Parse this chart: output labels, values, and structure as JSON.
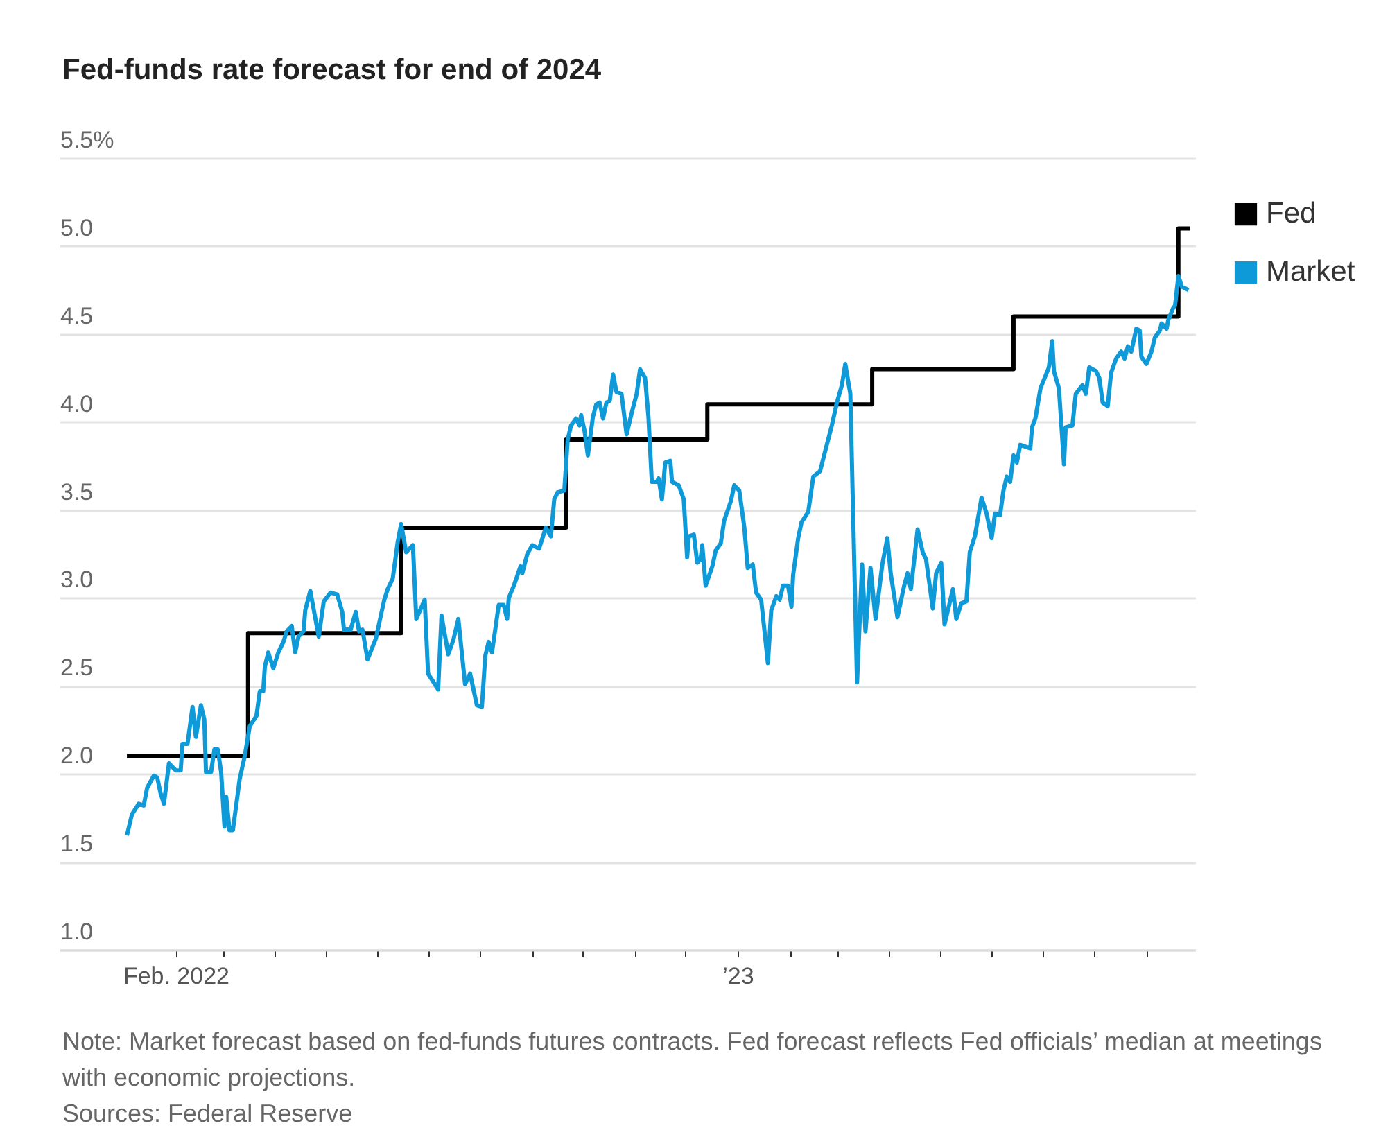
{
  "chart_data": {
    "type": "line",
    "title": "Fed-funds rate forecast for end of 2024",
    "xlim": [
      "2021-11-24",
      "2023-09-30"
    ],
    "xticks": [
      {
        "value": "2022-02-01",
        "label": "Feb. 2022"
      },
      {
        "value": "2022-03-01",
        "label": null
      },
      {
        "value": "2022-04-01",
        "label": null
      },
      {
        "value": "2022-05-01",
        "label": null
      },
      {
        "value": "2022-06-01",
        "label": null
      },
      {
        "value": "2022-07-01",
        "label": null
      },
      {
        "value": "2022-08-01",
        "label": null
      },
      {
        "value": "2022-09-01",
        "label": null
      },
      {
        "value": "2022-10-01",
        "label": null
      },
      {
        "value": "2022-11-01",
        "label": null
      },
      {
        "value": "2022-12-01",
        "label": null
      },
      {
        "value": "2023-01-01",
        "label": "’23"
      },
      {
        "value": "2023-02-01",
        "label": null
      },
      {
        "value": "2023-03-01",
        "label": null
      },
      {
        "value": "2023-04-01",
        "label": null
      },
      {
        "value": "2023-05-01",
        "label": null
      },
      {
        "value": "2023-06-01",
        "label": null
      },
      {
        "value": "2023-07-01",
        "label": null
      },
      {
        "value": "2023-08-01",
        "label": null
      },
      {
        "value": "2023-09-01",
        "label": null
      }
    ],
    "ylim": [
      1,
      5.5
    ],
    "yticks": [
      {
        "value": 1,
        "label": "1.0"
      },
      {
        "value": 1.5,
        "label": "1.5"
      },
      {
        "value": 2,
        "label": "2.0"
      },
      {
        "value": 2.5,
        "label": "2.5"
      },
      {
        "value": 3,
        "label": "3.0"
      },
      {
        "value": 3.5,
        "label": "3.5"
      },
      {
        "value": 4,
        "label": "4.0"
      },
      {
        "value": 4.5,
        "label": "4.5"
      },
      {
        "value": 5,
        "label": "5.0"
      },
      {
        "value": 5.5,
        "label": "5.5%"
      }
    ],
    "grid": "y",
    "legend": "top right",
    "series": [
      {
        "name": "Fed",
        "type": "step",
        "color": "#000000",
        "x": [
          "2022-01-03",
          "2022-03-16",
          "2022-06-15",
          "2022-09-21",
          "2022-12-14",
          "2023-03-22",
          "2023-06-14",
          "2023-09-20",
          "2023-09-27"
        ],
        "values": [
          2.1,
          2.8,
          3.4,
          3.9,
          4.1,
          4.3,
          4.6,
          5.1,
          5.1
        ]
      },
      {
        "name": "Market",
        "color": "#0e99d8",
        "x": [
          "2022-01-03",
          "2022-01-06",
          "2022-01-10",
          "2022-01-13",
          "2022-01-15",
          "2022-01-19",
          "2022-01-21",
          "2022-01-23",
          "2022-01-25",
          "2022-01-28",
          "2022-02-01",
          "2022-02-04",
          "2022-02-05",
          "2022-02-08",
          "2022-02-11",
          "2022-02-13",
          "2022-02-16",
          "2022-02-18",
          "2022-02-19",
          "2022-02-22",
          "2022-02-24",
          "2022-02-26",
          "2022-02-28",
          "2022-03-02",
          "2022-03-03",
          "2022-03-05",
          "2022-03-07",
          "2022-03-11",
          "2022-03-14",
          "2022-03-17",
          "2022-03-21",
          "2022-03-23",
          "2022-03-25",
          "2022-03-26",
          "2022-03-28",
          "2022-03-31",
          "2022-04-03",
          "2022-04-06",
          "2022-04-08",
          "2022-04-11",
          "2022-04-13",
          "2022-04-15",
          "2022-04-18",
          "2022-04-19",
          "2022-04-22",
          "2022-04-27",
          "2022-04-30",
          "2022-05-04",
          "2022-05-08",
          "2022-05-11",
          "2022-05-12",
          "2022-05-16",
          "2022-05-19",
          "2022-05-21",
          "2022-05-23",
          "2022-05-26",
          "2022-05-31",
          "2022-06-05",
          "2022-06-07",
          "2022-06-10",
          "2022-06-13",
          "2022-06-15",
          "2022-06-18",
          "2022-06-22",
          "2022-06-24",
          "2022-06-29",
          "2022-07-01",
          "2022-07-07",
          "2022-07-09",
          "2022-07-13",
          "2022-07-16",
          "2022-07-19",
          "2022-07-23",
          "2022-07-26",
          "2022-07-30",
          "2022-08-02",
          "2022-08-04",
          "2022-08-06",
          "2022-08-08",
          "2022-08-12",
          "2022-08-15",
          "2022-08-17",
          "2022-08-18",
          "2022-08-21",
          "2022-08-25",
          "2022-08-26",
          "2022-08-29",
          "2022-09-01",
          "2022-09-05",
          "2022-09-09",
          "2022-09-12",
          "2022-09-14",
          "2022-09-16",
          "2022-09-20",
          "2022-09-22",
          "2022-09-24",
          "2022-09-27",
          "2022-09-29",
          "2022-09-30",
          "2022-10-02",
          "2022-10-04",
          "2022-10-07",
          "2022-10-09",
          "2022-10-11",
          "2022-10-13",
          "2022-10-15",
          "2022-10-17",
          "2022-10-19",
          "2022-10-21",
          "2022-10-24",
          "2022-10-27",
          "2022-10-30",
          "2022-11-02",
          "2022-11-04",
          "2022-11-07",
          "2022-11-09",
          "2022-11-11",
          "2022-11-14",
          "2022-11-15",
          "2022-11-17",
          "2022-11-19",
          "2022-11-22",
          "2022-11-23",
          "2022-11-27",
          "2022-11-30",
          "2022-12-02",
          "2022-12-03",
          "2022-12-06",
          "2022-12-08",
          "2022-12-10",
          "2022-12-11",
          "2022-12-13",
          "2022-12-17",
          "2022-12-19",
          "2022-12-22",
          "2022-12-24",
          "2022-12-28",
          "2022-12-30",
          "2023-01-02",
          "2023-01-05",
          "2023-01-07",
          "2023-01-10",
          "2023-01-12",
          "2023-01-15",
          "2023-01-19",
          "2023-01-21",
          "2023-01-24",
          "2023-01-26",
          "2023-01-28",
          "2023-01-31",
          "2023-02-02",
          "2023-02-03",
          "2023-02-06",
          "2023-02-08",
          "2023-02-12",
          "2023-02-15",
          "2023-02-19",
          "2023-02-23",
          "2023-02-26",
          "2023-03-01",
          "2023-03-04",
          "2023-03-06",
          "2023-03-09",
          "2023-03-13",
          "2023-03-16",
          "2023-03-18",
          "2023-03-21",
          "2023-03-24",
          "2023-03-28",
          "2023-03-31",
          "2023-04-02",
          "2023-04-06",
          "2023-04-10",
          "2023-04-12",
          "2023-04-14",
          "2023-04-18",
          "2023-04-21",
          "2023-04-23",
          "2023-04-27",
          "2023-04-29",
          "2023-05-02",
          "2023-05-04",
          "2023-05-09",
          "2023-05-11",
          "2023-05-14",
          "2023-05-17",
          "2023-05-19",
          "2023-05-22",
          "2023-05-26",
          "2023-05-29",
          "2023-06-01",
          "2023-06-03",
          "2023-06-06",
          "2023-06-08",
          "2023-06-10",
          "2023-06-12",
          "2023-06-14",
          "2023-06-16",
          "2023-06-18",
          "2023-06-21",
          "2023-06-24",
          "2023-06-25",
          "2023-06-27",
          "2023-06-30",
          "2023-07-05",
          "2023-07-07",
          "2023-07-08",
          "2023-07-11",
          "2023-07-14",
          "2023-07-15",
          "2023-07-19",
          "2023-07-21",
          "2023-07-25",
          "2023-07-27",
          "2023-07-29",
          "2023-08-02",
          "2023-08-04",
          "2023-08-06",
          "2023-08-09",
          "2023-08-11",
          "2023-08-14",
          "2023-08-17",
          "2023-08-19",
          "2023-08-21",
          "2023-08-23",
          "2023-08-26",
          "2023-08-28",
          "2023-08-29",
          "2023-09-01",
          "2023-09-04",
          "2023-09-06",
          "2023-09-09",
          "2023-09-10",
          "2023-09-13",
          "2023-09-14",
          "2023-09-17",
          "2023-09-18",
          "2023-09-20",
          "2023-09-22",
          "2023-09-26"
        ],
        "values": [
          1.65,
          1.77,
          1.83,
          1.82,
          1.92,
          1.99,
          1.98,
          1.89,
          1.83,
          2.06,
          2.02,
          2.02,
          2.17,
          2.17,
          2.38,
          2.21,
          2.39,
          2.31,
          2.01,
          2.01,
          2.14,
          2.14,
          2.01,
          1.7,
          1.87,
          1.68,
          1.68,
          1.97,
          2.1,
          2.27,
          2.33,
          2.47,
          2.47,
          2.61,
          2.69,
          2.6,
          2.69,
          2.75,
          2.81,
          2.84,
          2.69,
          2.78,
          2.81,
          2.93,
          3.04,
          2.78,
          2.98,
          3.03,
          3.02,
          2.92,
          2.82,
          2.82,
          2.92,
          2.81,
          2.82,
          2.65,
          2.77,
          2.99,
          3.05,
          3.11,
          3.32,
          3.42,
          3.26,
          3.3,
          2.88,
          2.99,
          2.57,
          2.48,
          2.9,
          2.68,
          2.76,
          2.88,
          2.51,
          2.57,
          2.39,
          2.38,
          2.67,
          2.75,
          2.69,
          2.96,
          2.96,
          2.88,
          3.0,
          3.07,
          3.18,
          3.14,
          3.25,
          3.3,
          3.28,
          3.4,
          3.35,
          3.56,
          3.6,
          3.61,
          3.9,
          3.98,
          4.02,
          3.98,
          4.04,
          3.95,
          3.81,
          4.03,
          4.1,
          4.11,
          4.02,
          4.11,
          4.12,
          4.27,
          4.17,
          4.16,
          3.93,
          4.05,
          4.16,
          4.3,
          4.25,
          4.03,
          3.66,
          3.66,
          3.68,
          3.56,
          3.77,
          3.78,
          3.66,
          3.64,
          3.56,
          3.23,
          3.35,
          3.36,
          3.2,
          3.22,
          3.3,
          3.07,
          3.18,
          3.27,
          3.31,
          3.44,
          3.55,
          3.64,
          3.61,
          3.4,
          3.17,
          3.19,
          3.03,
          2.99,
          2.63,
          2.93,
          3.01,
          2.99,
          3.07,
          3.07,
          2.95,
          3.13,
          3.34,
          3.43,
          3.49,
          3.69,
          3.72,
          3.87,
          3.98,
          4.11,
          4.21,
          4.33,
          4.16,
          2.52,
          3.19,
          2.81,
          3.17,
          2.88,
          3.19,
          3.34,
          3.14,
          2.89,
          3.07,
          3.14,
          3.05,
          3.39,
          3.26,
          3.22,
          2.94,
          3.14,
          3.2,
          2.85,
          3.05,
          2.88,
          2.97,
          2.98,
          3.26,
          3.35,
          3.57,
          3.48,
          3.34,
          3.48,
          3.47,
          3.61,
          3.69,
          3.66,
          3.81,
          3.77,
          3.87,
          3.86,
          3.85,
          3.97,
          4.02,
          4.19,
          4.31,
          4.46,
          4.29,
          4.19,
          3.76,
          3.97,
          3.98,
          4.16,
          4.21,
          4.16,
          4.31,
          4.29,
          4.25,
          4.11,
          4.09,
          4.28,
          4.36,
          4.4,
          4.36,
          4.43,
          4.4,
          4.53,
          4.52,
          4.37,
          4.33,
          4.4,
          4.48,
          4.52,
          4.56,
          4.53,
          4.58,
          4.65,
          4.66,
          4.83,
          4.77,
          4.75
        ]
      }
    ],
    "annotations": [
      "Note: Market forecast based on fed-funds futures contracts. Fed forecast reflects Fed officials’ median at meetings with economic projections.",
      "Sources: Federal Reserve"
    ]
  }
}
